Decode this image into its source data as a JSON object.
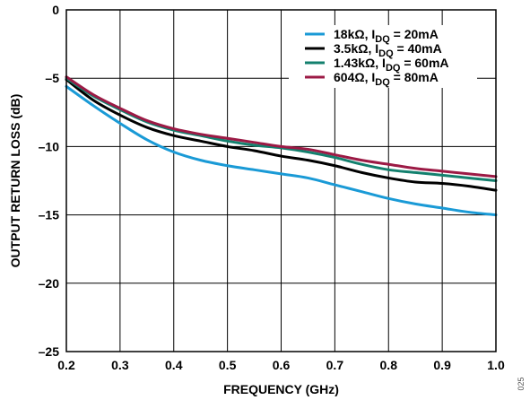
{
  "chart_data": {
    "type": "line",
    "xlabel": "FREQUENCY (GHz)",
    "ylabel": "OUTPUT RETURN LOSS (dB)",
    "xlim": [
      0.2,
      1.0
    ],
    "ylim": [
      -25,
      0
    ],
    "xticks": [
      "0.2",
      "0.3",
      "0.4",
      "0.5",
      "0.6",
      "0.7",
      "0.8",
      "0.9",
      "1.0"
    ],
    "yticks": [
      "0",
      "–5",
      "–10",
      "–15",
      "–20",
      "–25"
    ],
    "grid": true,
    "legend_position": "top-right",
    "figure_id": "025",
    "series": [
      {
        "name": "18kΩ, I_DQ = 20mA",
        "legend": {
          "pre": "18kΩ, I",
          "sub": "DQ",
          "post": " = 20mA"
        },
        "color": "#1a9ad6",
        "x": [
          0.2,
          0.25,
          0.3,
          0.35,
          0.4,
          0.45,
          0.5,
          0.55,
          0.6,
          0.65,
          0.7,
          0.75,
          0.8,
          0.85,
          0.9,
          0.95,
          1.0
        ],
        "y": [
          -5.6,
          -7.0,
          -8.3,
          -9.5,
          -10.4,
          -11.0,
          -11.4,
          -11.7,
          -12.0,
          -12.3,
          -12.8,
          -13.3,
          -13.8,
          -14.2,
          -14.5,
          -14.8,
          -15.0
        ]
      },
      {
        "name": "3.5kΩ, I_DQ = 40mA",
        "legend": {
          "pre": "3.5kΩ, I",
          "sub": "DQ",
          "post": " = 40mA"
        },
        "color": "#000000",
        "x": [
          0.2,
          0.25,
          0.3,
          0.35,
          0.4,
          0.45,
          0.5,
          0.55,
          0.6,
          0.65,
          0.7,
          0.75,
          0.8,
          0.85,
          0.9,
          0.95,
          1.0
        ],
        "y": [
          -5.1,
          -6.6,
          -7.7,
          -8.6,
          -9.2,
          -9.6,
          -10.0,
          -10.3,
          -10.7,
          -11.0,
          -11.4,
          -11.9,
          -12.3,
          -12.6,
          -12.7,
          -12.9,
          -13.2
        ]
      },
      {
        "name": "1.43kΩ, I_DQ = 60mA",
        "legend": {
          "pre": "1.43kΩ, I",
          "sub": "DQ",
          "post": " = 60mA"
        },
        "color": "#13806e",
        "x": [
          0.2,
          0.25,
          0.3,
          0.35,
          0.4,
          0.45,
          0.5,
          0.55,
          0.6,
          0.65,
          0.7,
          0.75,
          0.8,
          0.85,
          0.9,
          0.95,
          1.0
        ],
        "y": [
          -5.0,
          -6.3,
          -7.3,
          -8.2,
          -8.8,
          -9.2,
          -9.6,
          -9.9,
          -10.1,
          -10.4,
          -10.8,
          -11.3,
          -11.7,
          -11.9,
          -12.1,
          -12.3,
          -12.5
        ]
      },
      {
        "name": "604Ω, I_DQ = 80mA",
        "legend": {
          "pre": "604Ω, I",
          "sub": "DQ",
          "post": " = 80mA"
        },
        "color": "#9c1a45",
        "x": [
          0.2,
          0.25,
          0.3,
          0.35,
          0.4,
          0.45,
          0.5,
          0.55,
          0.6,
          0.65,
          0.7,
          0.75,
          0.8,
          0.85,
          0.9,
          0.95,
          1.0
        ],
        "y": [
          -4.9,
          -6.2,
          -7.2,
          -8.1,
          -8.7,
          -9.1,
          -9.4,
          -9.7,
          -10.0,
          -10.2,
          -10.6,
          -11.0,
          -11.3,
          -11.6,
          -11.8,
          -12.0,
          -12.2
        ]
      }
    ]
  }
}
